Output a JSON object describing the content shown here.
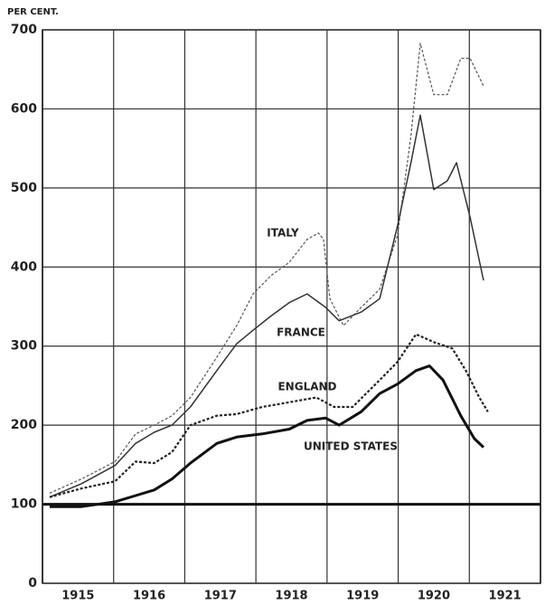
{
  "chart_data": {
    "type": "line",
    "ylabel": "PER CENT.",
    "xlim": [
      1915,
      1922
    ],
    "xticks": [
      1915,
      1916,
      1917,
      1918,
      1919,
      1920,
      1921
    ],
    "ylim": [
      0,
      700
    ],
    "yticks": [
      0,
      100,
      200,
      300,
      400,
      500,
      600,
      700
    ],
    "grid": true,
    "reference_line": 100,
    "series": [
      {
        "name": "ITALY",
        "color": "#555555",
        "dashed": true,
        "width": 1.2,
        "x": [
          1915.1,
          1915.55,
          1916.02,
          1916.31,
          1916.57,
          1916.82,
          1917.08,
          1917.45,
          1917.73,
          1917.96,
          1918.21,
          1918.47,
          1918.72,
          1918.88,
          1918.95,
          1919.04,
          1919.23,
          1919.48,
          1919.74,
          1919.99,
          1920.18,
          1920.31,
          1920.5,
          1920.69,
          1920.88,
          1921.01,
          1921.2
        ],
        "values": [
          114,
          132,
          154,
          189,
          200,
          212,
          235,
          286,
          326,
          366,
          389,
          406,
          435,
          443,
          435,
          360,
          326,
          349,
          372,
          440,
          566,
          683,
          618,
          618,
          664,
          664,
          629
        ]
      },
      {
        "name": "FRANCE",
        "color": "#333333",
        "dashed": false,
        "width": 1.5,
        "x": [
          1915.1,
          1915.55,
          1916.02,
          1916.31,
          1916.57,
          1916.82,
          1917.08,
          1917.45,
          1917.73,
          1917.96,
          1918.21,
          1918.47,
          1918.72,
          1918.98,
          1919.17,
          1919.48,
          1919.74,
          1919.99,
          1920.18,
          1920.31,
          1920.5,
          1920.69,
          1920.82,
          1921.01,
          1921.2
        ],
        "values": [
          109,
          126,
          149,
          177,
          191,
          200,
          223,
          269,
          303,
          320,
          338,
          355,
          366,
          349,
          332,
          343,
          360,
          452,
          532,
          592,
          498,
          509,
          532,
          463,
          383
        ]
      },
      {
        "name": "ENGLAND",
        "color": "#222222",
        "dashed": true,
        "width": 2.2,
        "x": [
          1915.1,
          1915.55,
          1916.02,
          1916.31,
          1916.57,
          1916.82,
          1917.08,
          1917.45,
          1917.73,
          1918.09,
          1918.47,
          1918.85,
          1919.1,
          1919.36,
          1919.74,
          1919.99,
          1920.25,
          1920.5,
          1920.76,
          1920.95,
          1921.14,
          1921.26
        ],
        "values": [
          109,
          120,
          129,
          154,
          152,
          166,
          200,
          212,
          214,
          223,
          229,
          235,
          223,
          223,
          257,
          280,
          315,
          305,
          297,
          269,
          235,
          217
        ]
      },
      {
        "name": "UNITED STATES",
        "color": "#111111",
        "dashed": false,
        "width": 3,
        "x": [
          1915.1,
          1915.55,
          1916.02,
          1916.31,
          1916.57,
          1916.82,
          1917.08,
          1917.45,
          1917.73,
          1918.09,
          1918.47,
          1918.72,
          1918.98,
          1919.17,
          1919.48,
          1919.74,
          1919.99,
          1920.25,
          1920.44,
          1920.63,
          1920.88,
          1921.07,
          1921.2
        ],
        "values": [
          97,
          97,
          103,
          111,
          118,
          132,
          152,
          177,
          185,
          189,
          195,
          206,
          209,
          200,
          217,
          240,
          252,
          269,
          275,
          257,
          212,
          183,
          172
        ]
      }
    ]
  }
}
